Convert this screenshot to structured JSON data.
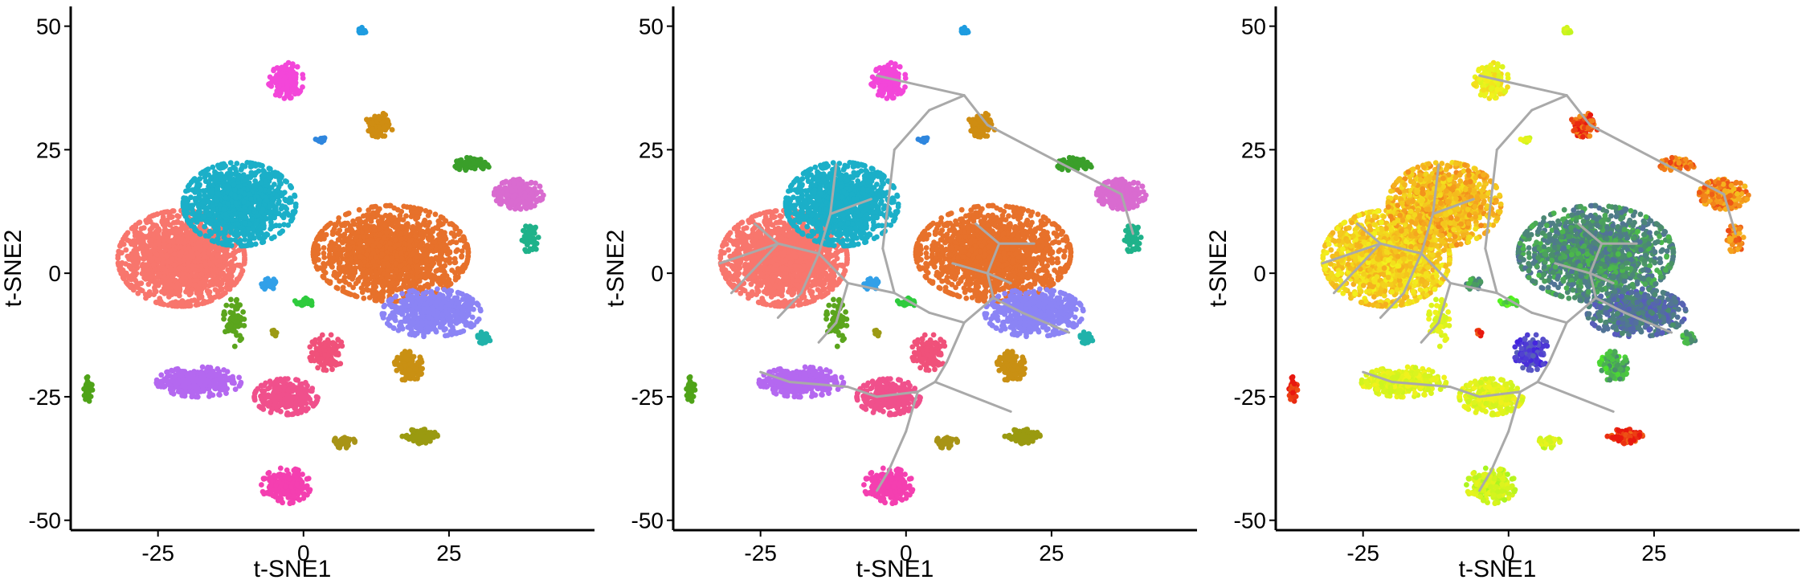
{
  "figure": {
    "panels": [
      "clusters",
      "trajectory",
      "pseudotime"
    ]
  },
  "chart_data": [
    {
      "type": "scatter",
      "id": "clusters",
      "title": "",
      "xlabel": "t-SNE1",
      "ylabel": "t-SNE2",
      "xlim": [
        -40,
        50
      ],
      "ylim": [
        -52,
        54
      ],
      "xticks": [
        -25,
        0,
        25
      ],
      "yticks": [
        -50,
        -25,
        0,
        25,
        50
      ],
      "grid": false,
      "legend": "none",
      "color_mode": "cluster",
      "show_trajectory": false,
      "clusters": [
        {
          "id": 1,
          "color": "#F8766D",
          "center": [
            -21,
            3
          ],
          "spread": [
            9,
            8
          ],
          "n": 1500,
          "value": 0.22
        },
        {
          "id": 2,
          "color": "#1BAFC8",
          "center": [
            -11,
            14
          ],
          "spread": [
            8,
            7
          ],
          "n": 1100,
          "value": 0.18
        },
        {
          "id": 3,
          "color": "#E7712B",
          "center": [
            15,
            4
          ],
          "spread": [
            11,
            8
          ],
          "n": 1500,
          "value": 0.72
        },
        {
          "id": 4,
          "color": "#8B84F5",
          "center": [
            22,
            -8
          ],
          "spread": [
            7,
            4
          ],
          "n": 500,
          "value": 0.78
        },
        {
          "id": 5,
          "color": "#B468F0",
          "center": [
            -18,
            -22
          ],
          "spread": [
            6,
            2.5
          ],
          "n": 350,
          "value": 0.35
        },
        {
          "id": 6,
          "color": "#F0508C",
          "center": [
            -3,
            -25
          ],
          "spread": [
            4.5,
            3
          ],
          "n": 280,
          "value": 0.35
        },
        {
          "id": 7,
          "color": "#F43FB0",
          "center": [
            -3,
            -43
          ],
          "spread": [
            3.5,
            3
          ],
          "n": 200,
          "value": 0.4
        },
        {
          "id": 8,
          "color": "#F346D9",
          "center": [
            -3,
            39
          ],
          "spread": [
            2.5,
            3
          ],
          "n": 160,
          "value": 0.3
        },
        {
          "id": 9,
          "color": "#D96BD0",
          "center": [
            37,
            16
          ],
          "spread": [
            3.5,
            2.5
          ],
          "n": 220,
          "value": 0.12
        },
        {
          "id": 10,
          "color": "#CF8D12",
          "center": [
            13,
            30
          ],
          "spread": [
            2,
            2
          ],
          "n": 90,
          "value": 0.05
        },
        {
          "id": 11,
          "color": "#C99013",
          "center": [
            18,
            -19
          ],
          "spread": [
            2,
            3
          ],
          "n": 110,
          "value": 0.66
        },
        {
          "id": 12,
          "color": "#F0517A",
          "center": [
            4,
            -16
          ],
          "spread": [
            2.5,
            3
          ],
          "n": 110,
          "value": 0.9
        },
        {
          "id": 13,
          "color": "#9A9A10",
          "center": [
            20,
            -33
          ],
          "spread": [
            2.5,
            1.2
          ],
          "n": 100,
          "value": 0.02
        },
        {
          "id": 14,
          "color": "#A89416",
          "center": [
            7,
            -34
          ],
          "spread": [
            1.5,
            1.2
          ],
          "n": 50,
          "value": 0.38
        },
        {
          "id": 15,
          "color": "#3A9F2A",
          "center": [
            29,
            22
          ],
          "spread": [
            2.5,
            1.2
          ],
          "n": 60,
          "value": 0.1
        },
        {
          "id": 16,
          "color": "#1FB28A",
          "center": [
            39,
            7
          ],
          "spread": [
            1.2,
            2.5
          ],
          "n": 50,
          "value": 0.12
        },
        {
          "id": 17,
          "color": "#20B2AA",
          "center": [
            31,
            -13
          ],
          "spread": [
            1,
            1
          ],
          "n": 35,
          "value": 0.7
        },
        {
          "id": 18,
          "color": "#5BA51D",
          "center": [
            -12,
            -10
          ],
          "spread": [
            1.5,
            4
          ],
          "n": 70,
          "value": 0.36
        },
        {
          "id": 19,
          "color": "#4FA318",
          "center": [
            -37,
            -24
          ],
          "spread": [
            0.6,
            2.5
          ],
          "n": 40,
          "value": 0.0
        },
        {
          "id": 20,
          "color": "#2ECB3D",
          "center": [
            0,
            -6
          ],
          "spread": [
            1.5,
            0.8
          ],
          "n": 30,
          "value": 0.6
        },
        {
          "id": 21,
          "color": "#32A0E8",
          "center": [
            -6,
            -2
          ],
          "spread": [
            1,
            1.2
          ],
          "n": 30,
          "value": 0.7
        },
        {
          "id": 22,
          "color": "#1E9CE0",
          "center": [
            10,
            49
          ],
          "spread": [
            0.7,
            0.6
          ],
          "n": 22,
          "value": 0.38
        },
        {
          "id": 23,
          "color": "#2E86DE",
          "center": [
            3,
            27
          ],
          "spread": [
            0.8,
            0.4
          ],
          "n": 10,
          "value": 0.36
        },
        {
          "id": 24,
          "color": "#9C9A14",
          "center": [
            -5,
            -12
          ],
          "spread": [
            0.7,
            0.6
          ],
          "n": 10,
          "value": 0.02
        }
      ]
    },
    {
      "type": "scatter",
      "id": "trajectory",
      "title": "",
      "xlabel": "t-SNE1",
      "ylabel": "t-SNE2",
      "xlim": [
        -40,
        50
      ],
      "ylim": [
        -52,
        54
      ],
      "xticks": [
        -25,
        0,
        25
      ],
      "yticks": [
        -50,
        -25,
        0,
        25,
        50
      ],
      "grid": false,
      "legend": "none",
      "color_mode": "cluster",
      "show_trajectory": true
    },
    {
      "type": "scatter",
      "id": "pseudotime",
      "title": "",
      "xlabel": "t-SNE1",
      "ylabel": "t-SNE2",
      "xlim": [
        -40,
        50
      ],
      "ylim": [
        -52,
        54
      ],
      "xticks": [
        -25,
        0,
        25
      ],
      "yticks": [
        -50,
        -25,
        0,
        25,
        50
      ],
      "grid": false,
      "legend": "none",
      "color_mode": "pseudotime",
      "show_trajectory": true,
      "palette": [
        "#E8180F",
        "#F5A81E",
        "#F2F21C",
        "#C9F51F",
        "#4DF51E",
        "#4A8F6A",
        "#5A55C8",
        "#3A10E8"
      ]
    }
  ],
  "trajectory_edges": [
    [
      [
        -25,
        -20
      ],
      [
        -20,
        -22
      ]
    ],
    [
      [
        -20,
        -22
      ],
      [
        -10,
        -23
      ]
    ],
    [
      [
        -10,
        -23
      ],
      [
        -5,
        -25
      ]
    ],
    [
      [
        -5,
        -25
      ],
      [
        2,
        -24
      ]
    ],
    [
      [
        2,
        -24
      ],
      [
        5,
        -22
      ]
    ],
    [
      [
        5,
        -22
      ],
      [
        18,
        -28
      ]
    ],
    [
      [
        2,
        -24
      ],
      [
        0,
        -32
      ]
    ],
    [
      [
        0,
        -32
      ],
      [
        -3,
        -40
      ]
    ],
    [
      [
        -3,
        -40
      ],
      [
        -5,
        -44
      ]
    ],
    [
      [
        5,
        -22
      ],
      [
        7,
        -18
      ]
    ],
    [
      [
        7,
        -18
      ],
      [
        10,
        -10
      ]
    ],
    [
      [
        10,
        -10
      ],
      [
        15,
        -5
      ]
    ],
    [
      [
        15,
        -5
      ],
      [
        20,
        -8
      ]
    ],
    [
      [
        20,
        -8
      ],
      [
        28,
        -12
      ]
    ],
    [
      [
        15,
        -5
      ],
      [
        14,
        0
      ]
    ],
    [
      [
        14,
        0
      ],
      [
        16,
        6
      ]
    ],
    [
      [
        16,
        6
      ],
      [
        12,
        10
      ]
    ],
    [
      [
        16,
        6
      ],
      [
        22,
        6
      ]
    ],
    [
      [
        14,
        0
      ],
      [
        8,
        2
      ]
    ],
    [
      [
        14,
        0
      ],
      [
        18,
        -2
      ]
    ],
    [
      [
        10,
        -10
      ],
      [
        4,
        -8
      ]
    ],
    [
      [
        4,
        -8
      ],
      [
        -2,
        -4
      ]
    ],
    [
      [
        -2,
        -4
      ],
      [
        -4,
        5
      ]
    ],
    [
      [
        -4,
        5
      ],
      [
        -2,
        25
      ]
    ],
    [
      [
        -2,
        25
      ],
      [
        4,
        33
      ]
    ],
    [
      [
        4,
        33
      ],
      [
        10,
        36
      ]
    ],
    [
      [
        10,
        36
      ],
      [
        14,
        30
      ]
    ],
    [
      [
        10,
        36
      ],
      [
        -5,
        40
      ]
    ],
    [
      [
        14,
        30
      ],
      [
        27,
        22
      ]
    ],
    [
      [
        27,
        22
      ],
      [
        37,
        16
      ]
    ],
    [
      [
        37,
        16
      ],
      [
        39,
        8
      ]
    ],
    [
      [
        -2,
        -4
      ],
      [
        -10,
        -2
      ]
    ],
    [
      [
        -10,
        -2
      ],
      [
        -15,
        4
      ]
    ],
    [
      [
        -15,
        4
      ],
      [
        -22,
        6
      ]
    ],
    [
      [
        -22,
        6
      ],
      [
        -32,
        2
      ]
    ],
    [
      [
        -15,
        4
      ],
      [
        -13,
        12
      ]
    ],
    [
      [
        -13,
        12
      ],
      [
        -12,
        22
      ]
    ],
    [
      [
        -13,
        12
      ],
      [
        -6,
        15
      ]
    ],
    [
      [
        -15,
        4
      ],
      [
        -18,
        -4
      ]
    ],
    [
      [
        -18,
        -4
      ],
      [
        -22,
        -9
      ]
    ],
    [
      [
        -22,
        6
      ],
      [
        -26,
        10
      ]
    ],
    [
      [
        -10,
        -2
      ],
      [
        -12,
        -10
      ]
    ],
    [
      [
        -12,
        -10
      ],
      [
        -15,
        -14
      ]
    ],
    [
      [
        -22,
        6
      ],
      [
        -30,
        -4
      ]
    ]
  ]
}
